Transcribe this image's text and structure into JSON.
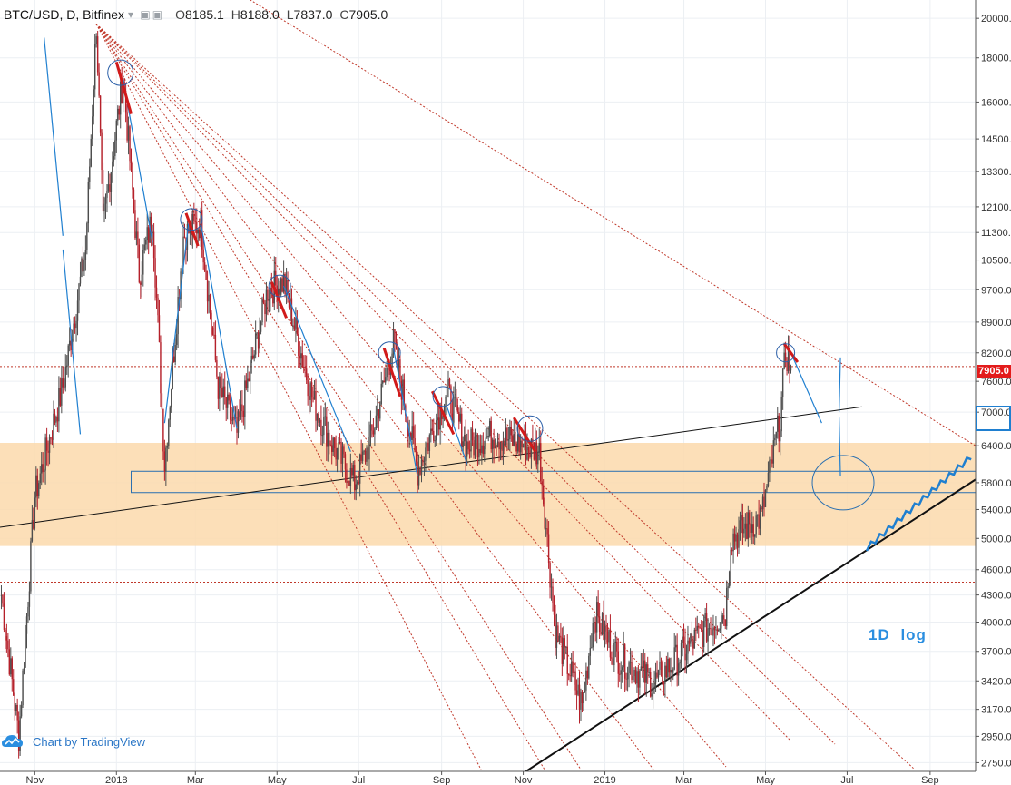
{
  "header": {
    "symbol": "BTC/USD, D, Bitfinex",
    "icons": "▾ ▣▣",
    "ohlc": [
      {
        "key": "O",
        "value": "8185.1"
      },
      {
        "key": "H",
        "value": "8188.0"
      },
      {
        "key": "L",
        "value": "7837.0"
      },
      {
        "key": "C",
        "value": "7905.0"
      }
    ]
  },
  "watermark": "Chart by TradingView",
  "note": "1D log",
  "last_price_label": "7905.0",
  "colors": {
    "up": "#4d4d4d",
    "down": "#b5202a",
    "zone": "#fbd9ab",
    "blue": "#1f7fd0",
    "dotted_red": "#c0392b",
    "grid": "#eceff3"
  },
  "chart_data": {
    "type": "candlestick",
    "scale": "log",
    "ylim": [
      2700,
      21000
    ],
    "y_ticks": [
      "20000.0",
      "18000.0",
      "16000.0",
      "14500.0",
      "13300.0",
      "12100.0",
      "11300.0",
      "10500.0",
      "9700.0",
      "8900.0",
      "8200.0",
      "7600.0",
      "7000.0",
      "6400.0",
      "5800.0",
      "5400.0",
      "5000.0",
      "4600.0",
      "4300.0",
      "4000.0",
      "3700.0",
      "3420.0",
      "3170.0",
      "2950.0",
      "2750.0"
    ],
    "x_ticks": [
      "Nov",
      "2018",
      "Mar",
      "May",
      "Jul",
      "Sep",
      "Nov",
      "2019",
      "Mar",
      "May",
      "Jul",
      "Sep"
    ],
    "x_range": [
      "2017-10-06",
      "2019-10-05"
    ],
    "close": 7905.0,
    "support_zone": [
      4900,
      6450
    ],
    "blue_box_range": [
      5650,
      5980
    ],
    "horizontal_levels": [
      7905,
      4450
    ],
    "anchor_points": [
      {
        "date": "2017-10-07",
        "price": 4300
      },
      {
        "date": "2017-10-20",
        "price": 2950
      },
      {
        "date": "2017-11-01",
        "price": 5600
      },
      {
        "date": "2017-11-22",
        "price": 7500
      },
      {
        "date": "2017-12-09",
        "price": 10800
      },
      {
        "date": "2017-12-17",
        "price": 19700
      },
      {
        "date": "2017-12-22",
        "price": 11500
      },
      {
        "date": "2018-01-06",
        "price": 17100
      },
      {
        "date": "2018-01-18",
        "price": 10100
      },
      {
        "date": "2018-01-28",
        "price": 11800
      },
      {
        "date": "2018-02-06",
        "price": 6100
      },
      {
        "date": "2018-02-20",
        "price": 11200
      },
      {
        "date": "2018-03-05",
        "price": 11600
      },
      {
        "date": "2018-03-18",
        "price": 7500
      },
      {
        "date": "2018-04-01",
        "price": 6600
      },
      {
        "date": "2018-04-24",
        "price": 9700
      },
      {
        "date": "2018-05-06",
        "price": 9900
      },
      {
        "date": "2018-05-28",
        "price": 7200
      },
      {
        "date": "2018-06-12",
        "price": 6400
      },
      {
        "date": "2018-06-28",
        "price": 5800
      },
      {
        "date": "2018-07-10",
        "price": 6500
      },
      {
        "date": "2018-07-27",
        "price": 8400
      },
      {
        "date": "2018-08-14",
        "price": 6000
      },
      {
        "date": "2018-09-05",
        "price": 7400
      },
      {
        "date": "2018-09-20",
        "price": 6400
      },
      {
        "date": "2018-10-10",
        "price": 6600
      },
      {
        "date": "2018-11-13",
        "price": 6300
      },
      {
        "date": "2018-11-25",
        "price": 3900
      },
      {
        "date": "2018-12-15",
        "price": 3200
      },
      {
        "date": "2018-12-24",
        "price": 4100
      },
      {
        "date": "2019-01-10",
        "price": 3650
      },
      {
        "date": "2019-02-07",
        "price": 3400
      },
      {
        "date": "2019-03-15",
        "price": 3900
      },
      {
        "date": "2019-04-01",
        "price": 4100
      },
      {
        "date": "2019-04-05",
        "price": 5000
      },
      {
        "date": "2019-04-28",
        "price": 5300
      },
      {
        "date": "2019-05-12",
        "price": 6900
      },
      {
        "date": "2019-05-16",
        "price": 8200
      },
      {
        "date": "2019-05-20",
        "price": 7905
      }
    ],
    "trendlines": [
      {
        "style": "solid",
        "from": {
          "date": "2017-10-06",
          "price": 5150
        },
        "to": {
          "date": "2019-07-12",
          "price": 7100
        }
      },
      {
        "style": "solid-thick",
        "from": {
          "date": "2018-10-28",
          "price": 2650
        },
        "to": {
          "date": "2019-10-05",
          "price": 5850
        }
      },
      {
        "style": "dotted",
        "from": {
          "date": "2017-10-01",
          "price": 32000
        },
        "to": {
          "date": "2019-10-05",
          "price": 6400
        }
      }
    ]
  }
}
